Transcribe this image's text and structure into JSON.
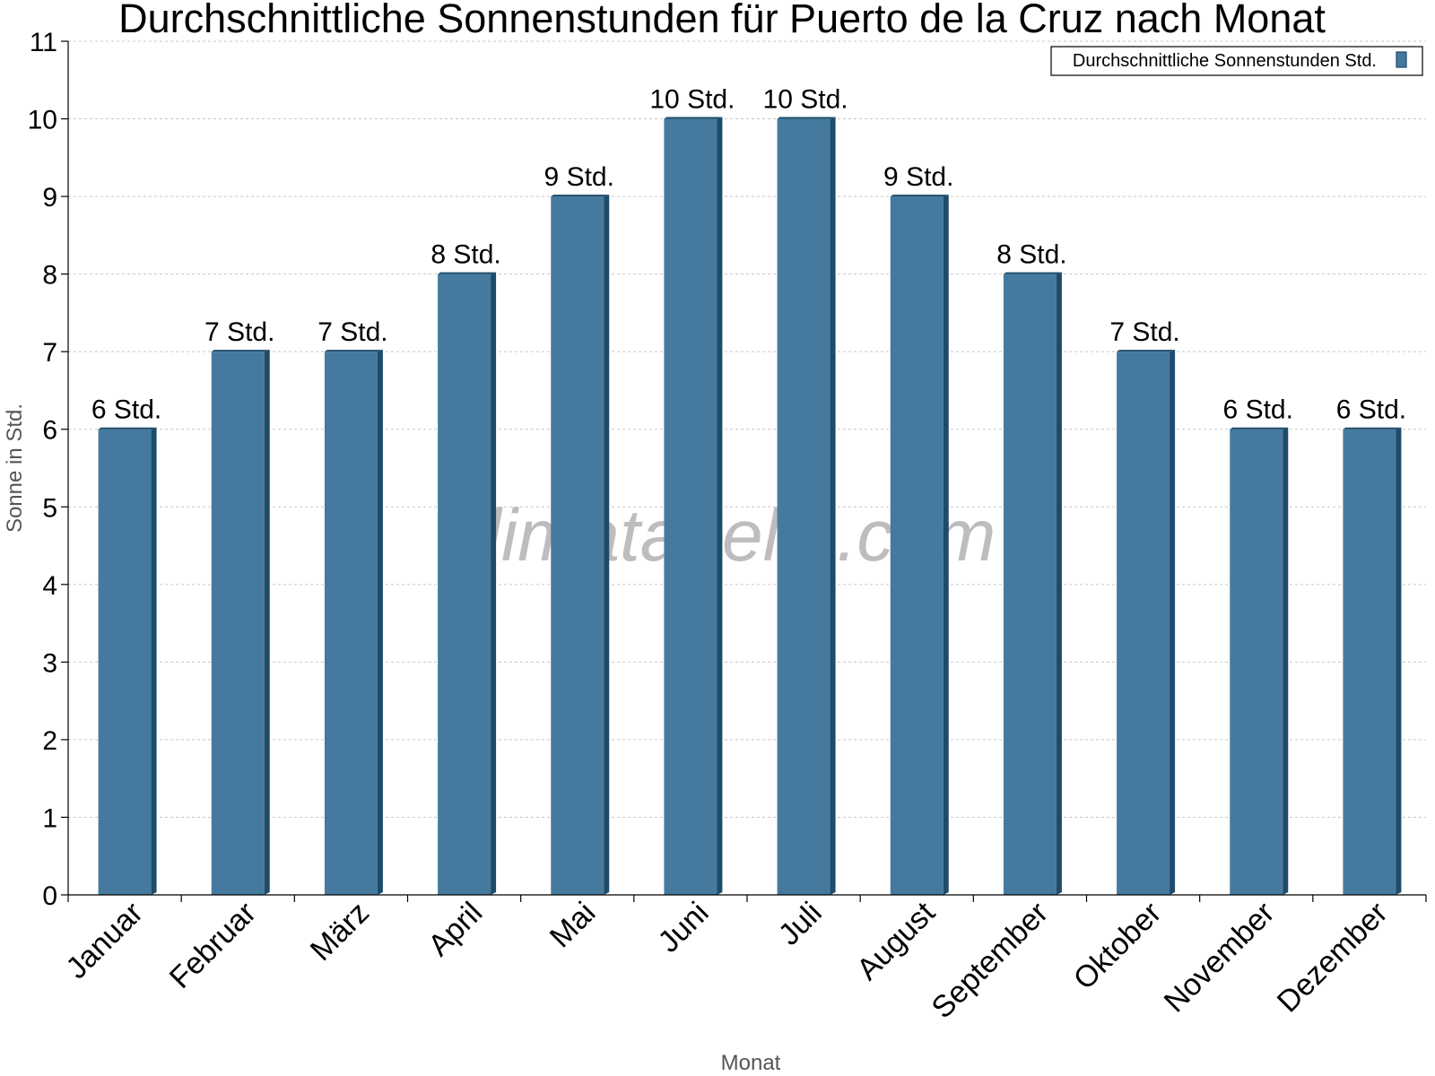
{
  "chart_data": {
    "type": "bar",
    "title": "Durchschnittliche Sonnenstunden für Puerto de la Cruz nach Monat",
    "xlabel": "Monat",
    "ylabel": "Sonne in Std.",
    "ylim": [
      0,
      11
    ],
    "yticks": [
      0,
      1,
      2,
      3,
      4,
      5,
      6,
      7,
      8,
      9,
      10,
      11
    ],
    "grid": true,
    "legend_position": "top-right",
    "categories": [
      "Januar",
      "Februar",
      "März",
      "April",
      "Mai",
      "Juni",
      "Juli",
      "August",
      "September",
      "Oktober",
      "November",
      "Dezember"
    ],
    "series": [
      {
        "name": "Durchschnittliche Sonnenstunden Std.",
        "values": [
          6,
          7,
          7,
          8,
          9,
          10,
          10,
          9,
          8,
          7,
          6,
          6
        ],
        "labels": [
          "6 Std.",
          "7 Std.",
          "7 Std.",
          "8 Std.",
          "9 Std.",
          "10 Std.",
          "10 Std.",
          "9 Std.",
          "8 Std.",
          "7 Std.",
          "6 Std.",
          "6 Std."
        ],
        "color": "#457a9e",
        "side_color": "#1f4b6b"
      }
    ],
    "watermark": "klimatabelle.com"
  }
}
